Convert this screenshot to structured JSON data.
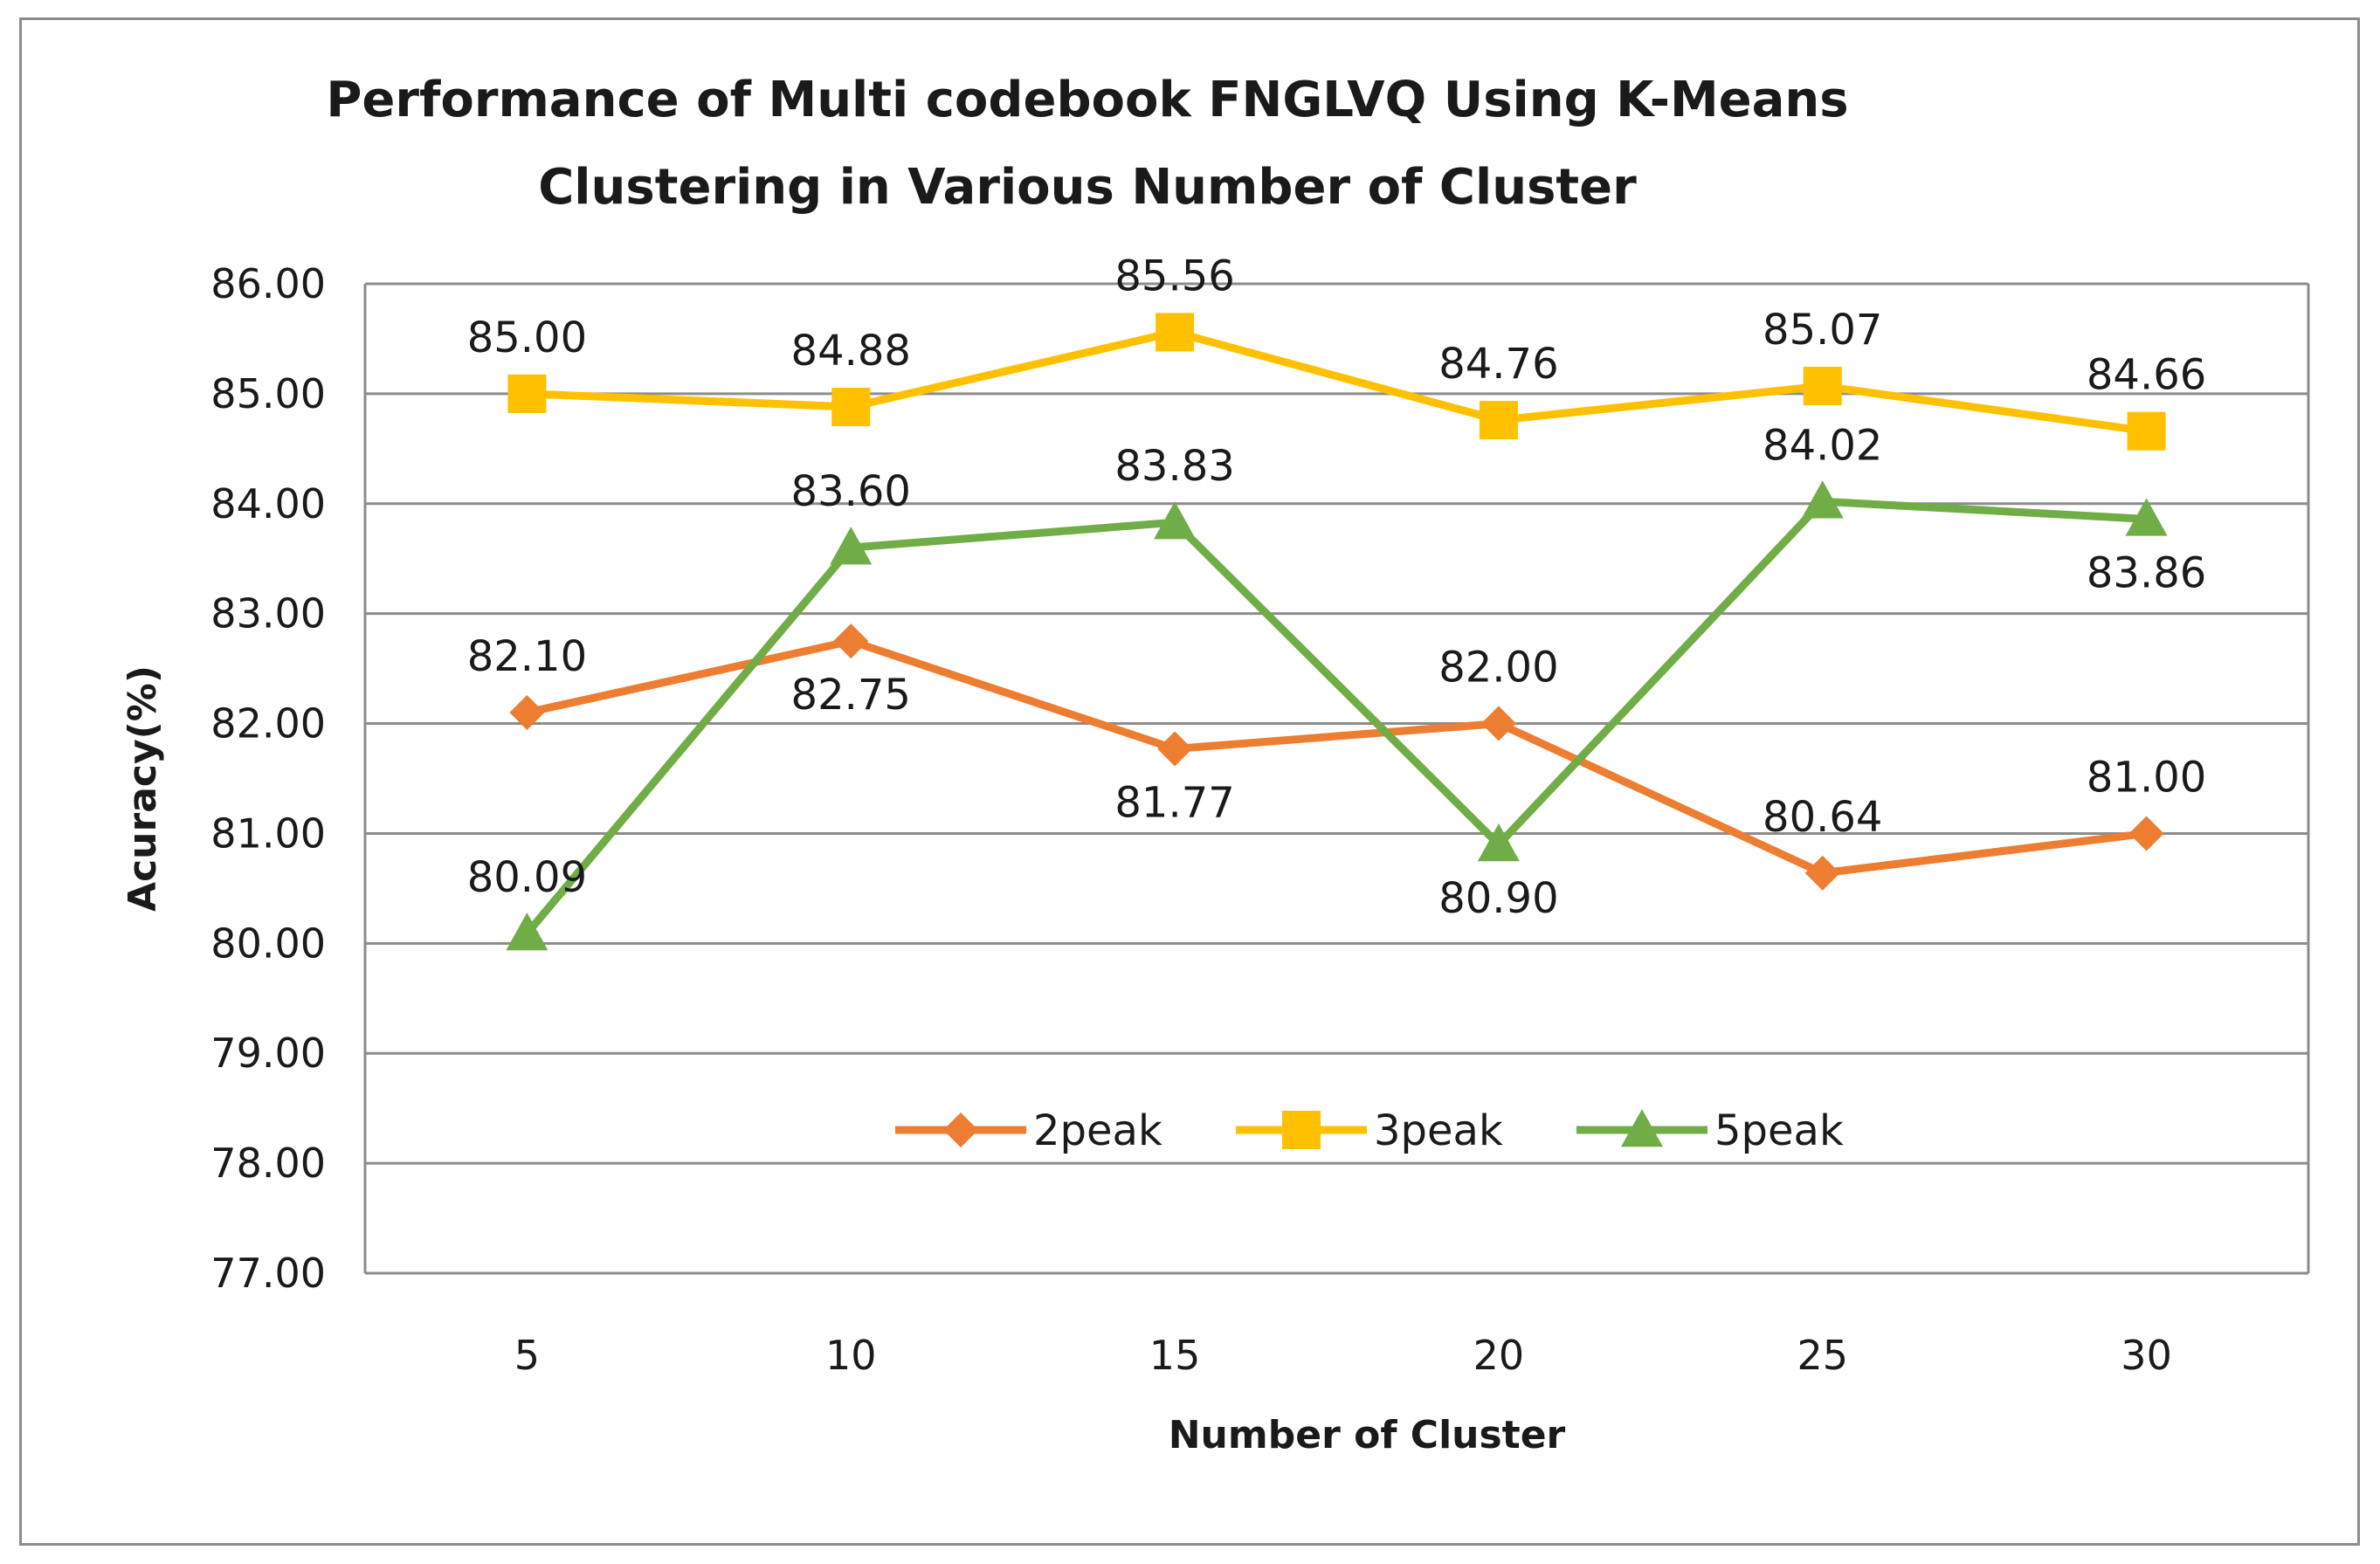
{
  "chart_data": {
    "type": "line",
    "title": "Performance of Multi codebook FNGLVQ Using K-Means Clustering in Various Number of Cluster",
    "title_lines": [
      "Performance of Multi codebook FNGLVQ Using K-Means",
      "Clustering in Various Number of Cluster"
    ],
    "xlabel": "Number of Cluster",
    "ylabel": "Acuracy(%)",
    "categories": [
      "5",
      "10",
      "15",
      "20",
      "25",
      "30"
    ],
    "ylim": [
      77,
      86
    ],
    "yticks": [
      "77.00",
      "78.00",
      "79.00",
      "80.00",
      "81.00",
      "82.00",
      "83.00",
      "84.00",
      "85.00",
      "86.00"
    ],
    "grid": true,
    "legend_position": "inside-bottom-center",
    "series": [
      {
        "name": "2peak",
        "color": "#ED7D31",
        "marker": "diamond",
        "values": [
          82.1,
          82.75,
          81.77,
          82.0,
          80.64,
          81.0
        ],
        "labels": [
          "82.10",
          "82.75",
          "81.77",
          "82.00",
          "80.64",
          "81.00"
        ],
        "label_side": [
          "above",
          "below",
          "below",
          "above",
          "above",
          "above"
        ]
      },
      {
        "name": "3peak",
        "color": "#FFC000",
        "marker": "square",
        "values": [
          85.0,
          84.88,
          85.56,
          84.76,
          85.07,
          84.66
        ],
        "labels": [
          "85.00",
          "84.88",
          "85.56",
          "84.76",
          "85.07",
          "84.66"
        ],
        "label_side": [
          "above",
          "above",
          "above",
          "above",
          "above",
          "above"
        ]
      },
      {
        "name": "5peak",
        "color": "#70AD47",
        "marker": "triangle",
        "values": [
          80.09,
          83.6,
          83.83,
          80.9,
          84.02,
          83.86
        ],
        "labels": [
          "80.09",
          "83.60",
          "83.83",
          "80.90",
          "84.02",
          "83.86"
        ],
        "label_side": [
          "above",
          "above",
          "above",
          "below",
          "above",
          "below"
        ]
      }
    ]
  }
}
